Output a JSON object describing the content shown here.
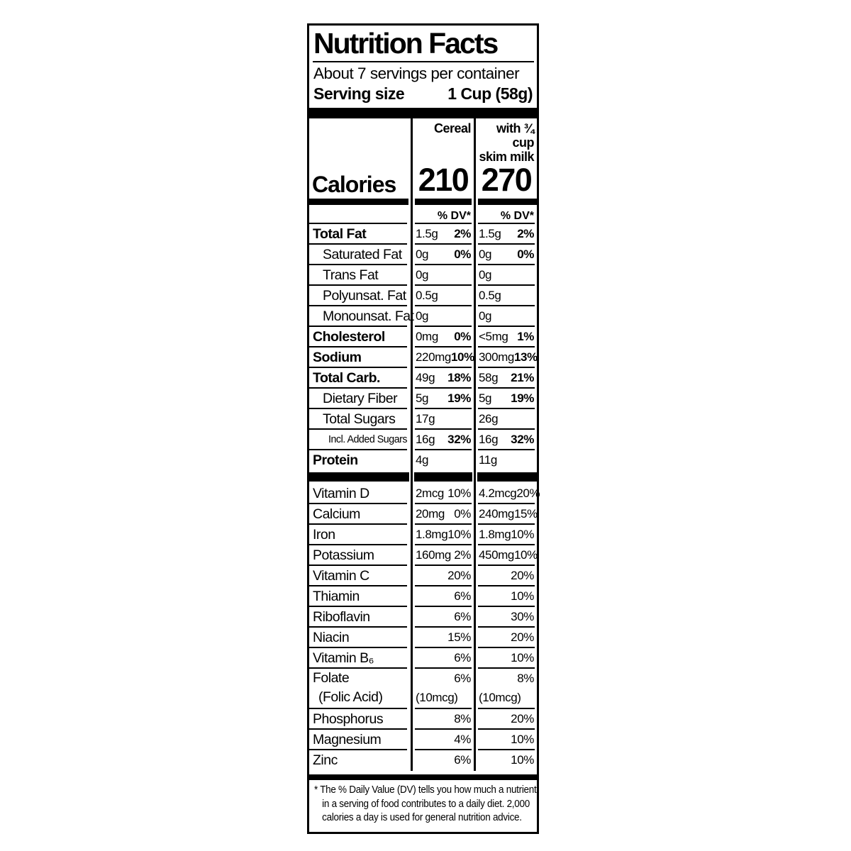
{
  "label": {
    "title": "Nutrition Facts",
    "servings_per_container": "About 7 servings per container",
    "serving_size_label": "Serving size",
    "serving_size_value": "1 Cup (58g)",
    "dv_header": "% DV*",
    "footnote_lines": [
      "* The % Daily Value (DV) tells you how much a nutrient",
      "in a serving of food contributes to a daily diet. 2,000",
      "calories a day is used for general nutrition advice."
    ]
  },
  "columns": {
    "cereal": "Cereal",
    "milk_line1": "with ¾ cup",
    "milk_line2": "skim milk"
  },
  "calories": {
    "label": "Calories",
    "cereal": "210",
    "milk": "270"
  },
  "nutrients": [
    {
      "label": "Total Fat",
      "bold": true,
      "indent": 0,
      "cereal_amount": "1.5g",
      "cereal_dv": "2%",
      "milk_amount": "1.5g",
      "milk_dv": "2%"
    },
    {
      "label": "Saturated Fat",
      "bold": false,
      "indent": 1,
      "cereal_amount": "0g",
      "cereal_dv": "0%",
      "milk_amount": "0g",
      "milk_dv": "0%"
    },
    {
      "label": "Trans Fat",
      "bold": false,
      "indent": 1,
      "cereal_amount": "0g",
      "cereal_dv": "",
      "milk_amount": "0g",
      "milk_dv": ""
    },
    {
      "label": "Polyunsat. Fat",
      "bold": false,
      "indent": 1,
      "cereal_amount": "0.5g",
      "cereal_dv": "",
      "milk_amount": "0.5g",
      "milk_dv": ""
    },
    {
      "label": "Monounsat. Fat",
      "bold": false,
      "indent": 1,
      "cereal_amount": "0g",
      "cereal_dv": "",
      "milk_amount": "0g",
      "milk_dv": ""
    },
    {
      "label": "Cholesterol",
      "bold": true,
      "indent": 0,
      "cereal_amount": "0mg",
      "cereal_dv": "0%",
      "milk_amount": "<5mg",
      "milk_dv": "1%"
    },
    {
      "label": "Sodium",
      "bold": true,
      "indent": 0,
      "cereal_amount": "220mg",
      "cereal_dv": "10%",
      "milk_amount": "300mg",
      "milk_dv": "13%"
    },
    {
      "label": "Total Carb.",
      "bold": true,
      "indent": 0,
      "cereal_amount": "49g",
      "cereal_dv": "18%",
      "milk_amount": "58g",
      "milk_dv": "21%"
    },
    {
      "label": "Dietary Fiber",
      "bold": false,
      "indent": 1,
      "cereal_amount": "5g",
      "cereal_dv": "19%",
      "milk_amount": "5g",
      "milk_dv": "19%"
    },
    {
      "label": "Total Sugars",
      "bold": false,
      "indent": 1,
      "cereal_amount": "17g",
      "cereal_dv": "",
      "milk_amount": "26g",
      "milk_dv": ""
    },
    {
      "label": "Incl. Added Sugars",
      "bold": false,
      "indent": 2,
      "small": true,
      "cereal_amount": "16g",
      "cereal_dv": "32%",
      "milk_amount": "16g",
      "milk_dv": "32%"
    },
    {
      "label": "Protein",
      "bold": true,
      "indent": 0,
      "cereal_amount": "4g",
      "cereal_dv": "",
      "milk_amount": "11g",
      "milk_dv": ""
    }
  ],
  "vitamins": [
    {
      "label": "Vitamin D",
      "cereal_amount": "2mcg",
      "cereal_dv": "10%",
      "milk_amount": "4.2mcg",
      "milk_dv": "20%"
    },
    {
      "label": "Calcium",
      "cereal_amount": "20mg",
      "cereal_dv": "0%",
      "milk_amount": "240mg",
      "milk_dv": "15%"
    },
    {
      "label": "Iron",
      "cereal_amount": "1.8mg",
      "cereal_dv": "10%",
      "milk_amount": "1.8mg",
      "milk_dv": "10%"
    },
    {
      "label": "Potassium",
      "cereal_amount": "160mg",
      "cereal_dv": "2%",
      "milk_amount": "450mg",
      "milk_dv": "10%"
    },
    {
      "label": "Vitamin C",
      "cereal_amount": "",
      "cereal_dv": "20%",
      "milk_amount": "",
      "milk_dv": "20%"
    },
    {
      "label": "Thiamin",
      "cereal_amount": "",
      "cereal_dv": "6%",
      "milk_amount": "",
      "milk_dv": "10%"
    },
    {
      "label": "Riboflavin",
      "cereal_amount": "",
      "cereal_dv": "6%",
      "milk_amount": "",
      "milk_dv": "30%"
    },
    {
      "label": "Niacin",
      "cereal_amount": "",
      "cereal_dv": "15%",
      "milk_amount": "",
      "milk_dv": "20%"
    },
    {
      "label": "Vitamin B₆",
      "cereal_amount": "",
      "cereal_dv": "6%",
      "milk_amount": "",
      "milk_dv": "10%"
    },
    {
      "label": "Folate",
      "label2": "(Folic Acid)",
      "cereal_amount": "",
      "cereal_dv": "6%",
      "milk_amount": "",
      "milk_dv": "8%",
      "cereal_amount2": "(10mcg)",
      "milk_amount2": "(10mcg)"
    },
    {
      "label": "Phosphorus",
      "cereal_amount": "",
      "cereal_dv": "8%",
      "milk_amount": "",
      "milk_dv": "20%"
    },
    {
      "label": "Magnesium",
      "cereal_amount": "",
      "cereal_dv": "4%",
      "milk_amount": "",
      "milk_dv": "10%"
    },
    {
      "label": "Zinc",
      "cereal_amount": "",
      "cereal_dv": "6%",
      "milk_amount": "",
      "milk_dv": "10%"
    }
  ],
  "colors": {
    "ink": "#000000",
    "paper": "#ffffff"
  }
}
